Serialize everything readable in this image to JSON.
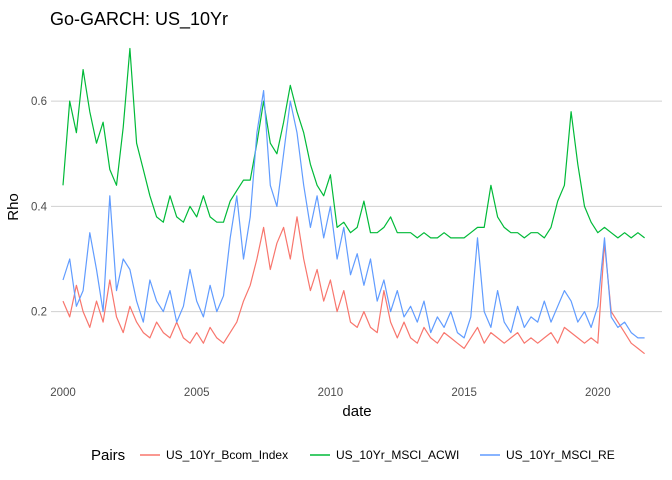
{
  "chart_data": {
    "type": "line",
    "title": "Go-GARCH: US_10Yr",
    "xlabel": "date",
    "ylabel": "Rho",
    "xlim": [
      1999.55,
      2022.4
    ],
    "ylim": [
      0.07,
      0.72
    ],
    "x_ticks": [
      2000,
      2005,
      2010,
      2015,
      2020
    ],
    "x_tick_labels": [
      "2000",
      "2005",
      "2010",
      "2015",
      "2020"
    ],
    "y_ticks": [
      0.2,
      0.4,
      0.6
    ],
    "y_tick_labels": [
      "0.2",
      "0.4",
      "0.6"
    ],
    "grid": true,
    "legend_position": "bottom",
    "legend_title": "Pairs",
    "x": [
      2000.0,
      2000.25,
      2000.5,
      2000.75,
      2001.0,
      2001.25,
      2001.5,
      2001.75,
      2002.0,
      2002.25,
      2002.5,
      2002.75,
      2003.0,
      2003.25,
      2003.5,
      2003.75,
      2004.0,
      2004.25,
      2004.5,
      2004.75,
      2005.0,
      2005.25,
      2005.5,
      2005.75,
      2006.0,
      2006.25,
      2006.5,
      2006.75,
      2007.0,
      2007.25,
      2007.5,
      2007.75,
      2008.0,
      2008.25,
      2008.5,
      2008.75,
      2009.0,
      2009.25,
      2009.5,
      2009.75,
      2010.0,
      2010.25,
      2010.5,
      2010.75,
      2011.0,
      2011.25,
      2011.5,
      2011.75,
      2012.0,
      2012.25,
      2012.5,
      2012.75,
      2013.0,
      2013.25,
      2013.5,
      2013.75,
      2014.0,
      2014.25,
      2014.5,
      2014.75,
      2015.0,
      2015.25,
      2015.5,
      2015.75,
      2016.0,
      2016.25,
      2016.5,
      2016.75,
      2017.0,
      2017.25,
      2017.5,
      2017.75,
      2018.0,
      2018.25,
      2018.5,
      2018.75,
      2019.0,
      2019.25,
      2019.5,
      2019.75,
      2020.0,
      2020.25,
      2020.5,
      2020.75,
      2021.0,
      2021.25,
      2021.5,
      2021.75
    ],
    "series": [
      {
        "name": "US_10Yr_Bcom_Index",
        "color": "#F8766D",
        "values": [
          0.22,
          0.19,
          0.25,
          0.2,
          0.17,
          0.22,
          0.18,
          0.26,
          0.19,
          0.16,
          0.21,
          0.18,
          0.16,
          0.15,
          0.18,
          0.16,
          0.15,
          0.18,
          0.15,
          0.14,
          0.16,
          0.14,
          0.17,
          0.15,
          0.14,
          0.16,
          0.18,
          0.22,
          0.25,
          0.3,
          0.36,
          0.28,
          0.33,
          0.36,
          0.3,
          0.38,
          0.3,
          0.24,
          0.28,
          0.22,
          0.26,
          0.2,
          0.24,
          0.18,
          0.17,
          0.2,
          0.17,
          0.16,
          0.24,
          0.18,
          0.15,
          0.18,
          0.15,
          0.14,
          0.17,
          0.15,
          0.14,
          0.16,
          0.15,
          0.14,
          0.13,
          0.15,
          0.17,
          0.14,
          0.16,
          0.15,
          0.14,
          0.15,
          0.16,
          0.14,
          0.15,
          0.14,
          0.15,
          0.16,
          0.14,
          0.17,
          0.16,
          0.15,
          0.14,
          0.15,
          0.14,
          0.33,
          0.2,
          0.18,
          0.16,
          0.14,
          0.13,
          0.12
        ]
      },
      {
        "name": "US_10Yr_MSCI_ACWI",
        "color": "#00BA38",
        "values": [
          0.44,
          0.6,
          0.54,
          0.66,
          0.58,
          0.52,
          0.56,
          0.47,
          0.44,
          0.55,
          0.7,
          0.52,
          0.47,
          0.42,
          0.38,
          0.37,
          0.42,
          0.38,
          0.37,
          0.4,
          0.38,
          0.42,
          0.38,
          0.37,
          0.37,
          0.41,
          0.43,
          0.45,
          0.45,
          0.52,
          0.6,
          0.52,
          0.5,
          0.56,
          0.63,
          0.58,
          0.54,
          0.48,
          0.44,
          0.42,
          0.46,
          0.36,
          0.37,
          0.35,
          0.36,
          0.41,
          0.35,
          0.35,
          0.36,
          0.38,
          0.35,
          0.35,
          0.35,
          0.34,
          0.35,
          0.34,
          0.34,
          0.35,
          0.34,
          0.34,
          0.34,
          0.35,
          0.36,
          0.36,
          0.44,
          0.38,
          0.36,
          0.35,
          0.35,
          0.34,
          0.35,
          0.35,
          0.34,
          0.36,
          0.41,
          0.44,
          0.58,
          0.48,
          0.4,
          0.37,
          0.35,
          0.36,
          0.35,
          0.34,
          0.35,
          0.34,
          0.35,
          0.34
        ]
      },
      {
        "name": "US_10Yr_MSCI_RE",
        "color": "#619CFF",
        "values": [
          0.26,
          0.3,
          0.21,
          0.24,
          0.35,
          0.28,
          0.2,
          0.42,
          0.24,
          0.3,
          0.28,
          0.22,
          0.18,
          0.26,
          0.22,
          0.2,
          0.24,
          0.18,
          0.21,
          0.28,
          0.22,
          0.19,
          0.25,
          0.2,
          0.23,
          0.34,
          0.42,
          0.3,
          0.38,
          0.54,
          0.62,
          0.44,
          0.4,
          0.5,
          0.6,
          0.54,
          0.44,
          0.36,
          0.42,
          0.34,
          0.4,
          0.3,
          0.36,
          0.27,
          0.31,
          0.25,
          0.3,
          0.22,
          0.26,
          0.2,
          0.24,
          0.19,
          0.21,
          0.18,
          0.22,
          0.16,
          0.19,
          0.17,
          0.2,
          0.16,
          0.15,
          0.19,
          0.34,
          0.2,
          0.17,
          0.24,
          0.18,
          0.16,
          0.21,
          0.17,
          0.19,
          0.18,
          0.22,
          0.18,
          0.21,
          0.24,
          0.22,
          0.18,
          0.2,
          0.17,
          0.21,
          0.34,
          0.19,
          0.17,
          0.18,
          0.16,
          0.15,
          0.15
        ]
      }
    ]
  }
}
